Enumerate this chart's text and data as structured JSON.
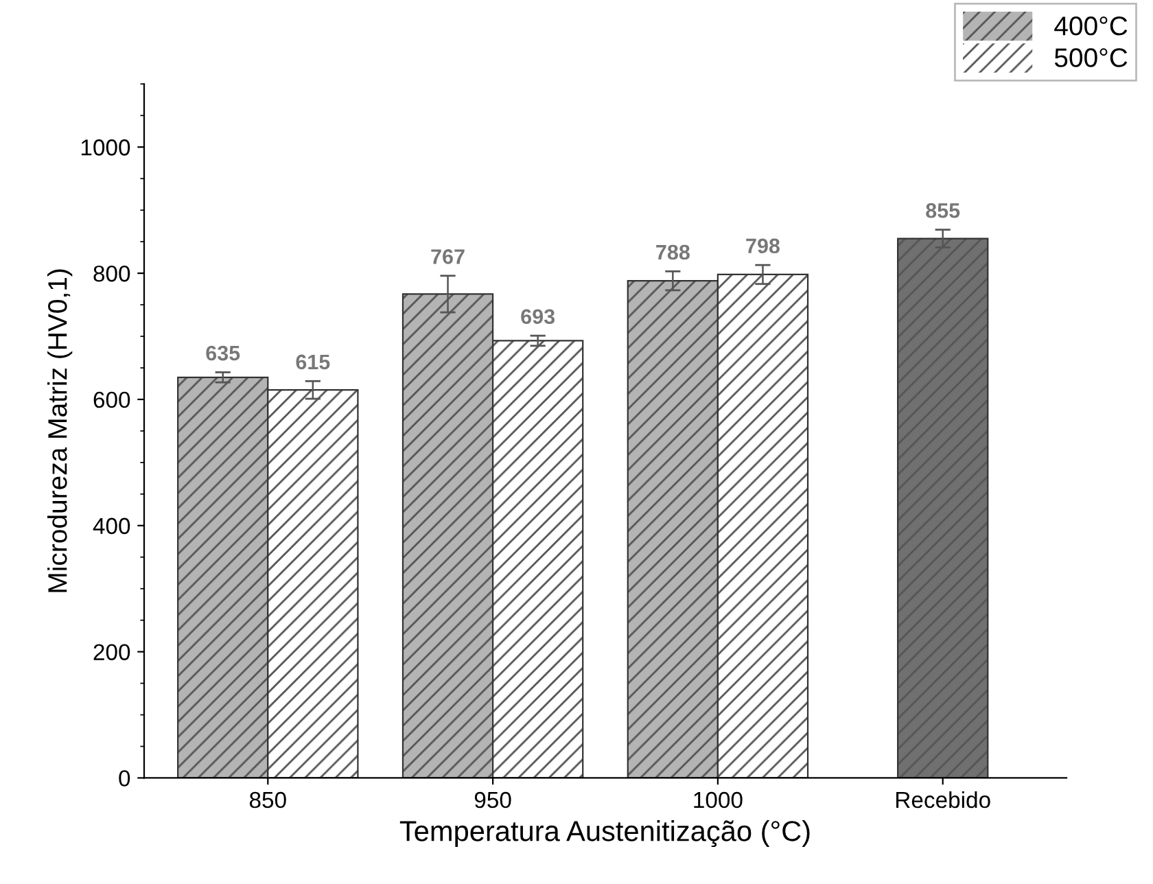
{
  "chart_data": {
    "type": "bar",
    "xlabel": "Temperatura Austenitização (°C)",
    "ylabel": "Microdureza Matriz (HV0,1)",
    "categories": [
      "850",
      "950",
      "1000",
      "Recebido"
    ],
    "series": [
      {
        "name": "400°C",
        "color": "#b4b4b4",
        "colors": [
          "#b4b4b4",
          "#b4b4b4",
          "#b4b4b4",
          "#707070"
        ],
        "values": [
          635,
          767,
          788,
          855
        ],
        "errors": [
          8,
          29,
          15,
          14
        ]
      },
      {
        "name": "500°C",
        "color": "#ffffff",
        "values": [
          615,
          693,
          798,
          null
        ],
        "errors": [
          14,
          8,
          15,
          null
        ]
      }
    ],
    "data_labels": true,
    "ylim": [
      0,
      1100
    ],
    "yticks": [
      0,
      200,
      400,
      600,
      800,
      1000
    ],
    "grid": false,
    "legend": "top right"
  }
}
